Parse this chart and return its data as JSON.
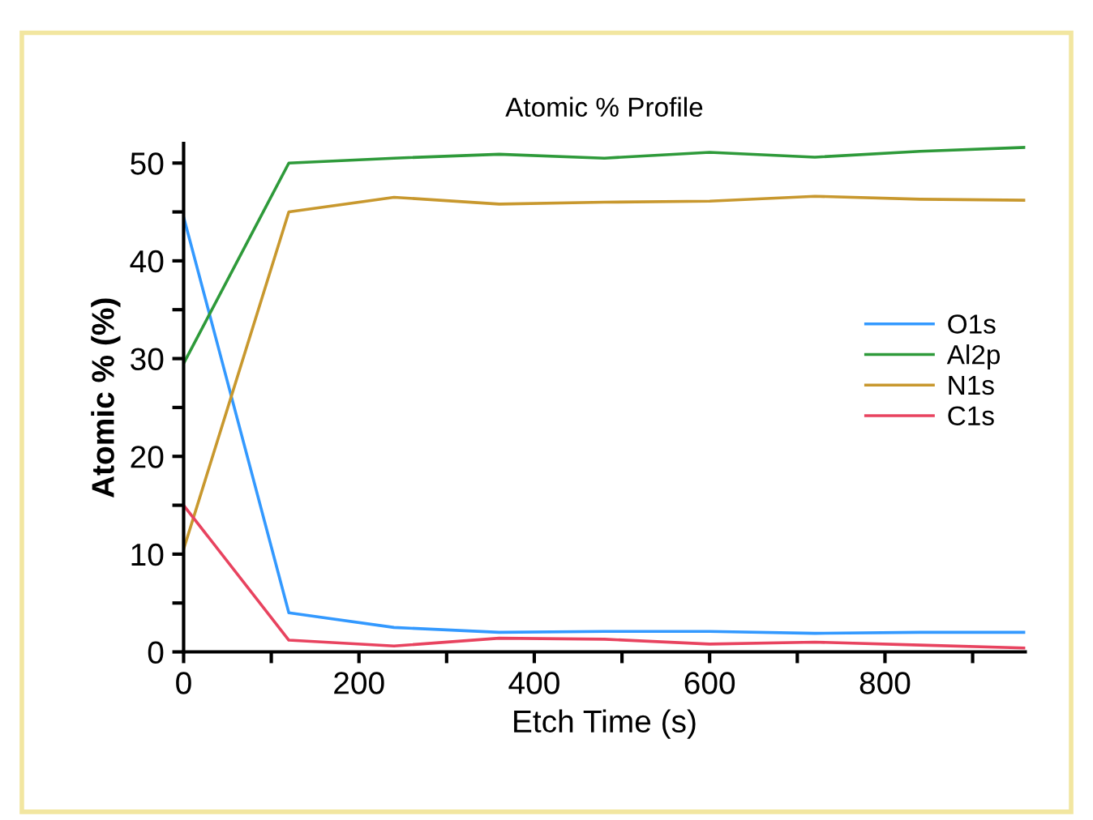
{
  "chart_data": {
    "type": "line",
    "title": "Atomic % Profile",
    "xlabel": "Etch Time (s)",
    "ylabel": "Atomic % (%)",
    "x": [
      0,
      120,
      240,
      360,
      480,
      600,
      720,
      840,
      960
    ],
    "series": [
      {
        "name": "O1s",
        "color": "#3399ff",
        "values": [
          44.5,
          4,
          2.5,
          2,
          2.1,
          2.1,
          1.9,
          2,
          2
        ]
      },
      {
        "name": "Al2p",
        "color": "#2e9a3a",
        "values": [
          29.5,
          50,
          50.5,
          50.9,
          50.5,
          51.1,
          50.6,
          51.2,
          51.6
        ]
      },
      {
        "name": "N1s",
        "color": "#c8982e",
        "values": [
          10.5,
          45,
          46.5,
          45.8,
          46,
          46.1,
          46.6,
          46.3,
          46.2
        ]
      },
      {
        "name": "C1s",
        "color": "#e8435f",
        "values": [
          15,
          1.2,
          0.6,
          1.4,
          1.3,
          0.8,
          1,
          0.7,
          0.4
        ]
      }
    ],
    "xlim": [
      0,
      960
    ],
    "ylim": [
      0,
      52
    ],
    "xticks": [
      0,
      {
        "value": 100,
        "label": null
      },
      200,
      {
        "value": 300,
        "label": null
      },
      400,
      {
        "value": 500,
        "label": null
      },
      600,
      {
        "value": 700,
        "label": null
      },
      800,
      {
        "value": 900,
        "label": null
      }
    ],
    "yticks": [
      0,
      {
        "value": 5,
        "label": null
      },
      10,
      {
        "value": 15,
        "label": null
      },
      20,
      {
        "value": 25,
        "label": null
      },
      30,
      {
        "value": 35,
        "label": null
      },
      40,
      {
        "value": 45,
        "label": null
      },
      50
    ],
    "grid": false,
    "legend": "right",
    "marker": "none",
    "line_style": "solid"
  }
}
